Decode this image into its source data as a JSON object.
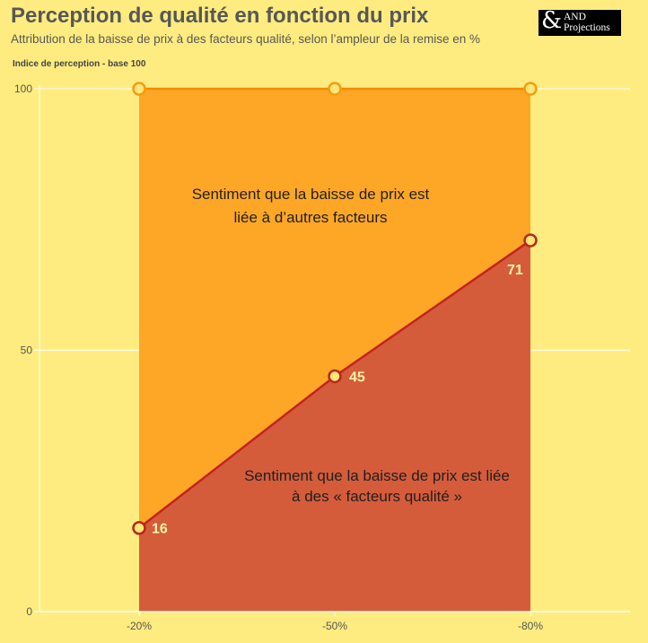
{
  "header": {
    "title": "Perception de qualité en fonction du prix",
    "subtitle": "Attribution de la baisse de prix à des facteurs qualité, selon l’ampleur de la remise en %",
    "logo_line1": "AND",
    "logo_line2": "Projections"
  },
  "chart_data": {
    "type": "area",
    "ylabel": "Indice de perception - base 100",
    "categories": [
      "-20%",
      "-50%",
      "-80%"
    ],
    "series": [
      {
        "name": "Sentiment que la baisse de prix est liée à des « facteurs qualité »",
        "values": [
          16,
          45,
          71
        ],
        "color": "#d55c3b",
        "line_color": "#c3231b"
      },
      {
        "name": "Sentiment que la baisse de prix est liée à d’autres facteurs",
        "values": [
          100,
          100,
          100
        ],
        "color": "#fea726",
        "line_color": "#f08c00"
      }
    ],
    "data_labels": [
      "16",
      "45",
      "71"
    ],
    "yticks": [
      0,
      50,
      100
    ],
    "ylim": [
      0,
      100
    ],
    "grid": true,
    "annotations": {
      "upper": [
        "Sentiment que la baisse de prix est",
        "liée à d’autres facteurs"
      ],
      "lower": [
        "Sentiment que la baisse de prix est liée",
        "à des « facteurs qualité »"
      ]
    }
  }
}
